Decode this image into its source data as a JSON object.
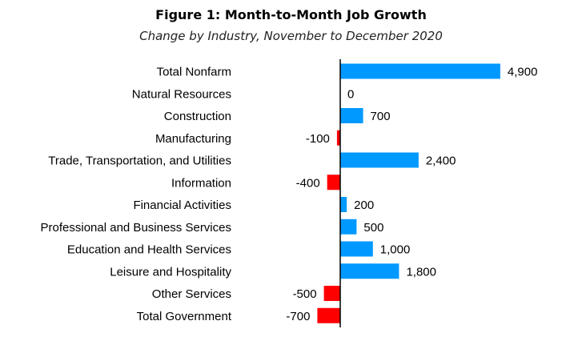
{
  "chart_data": {
    "type": "bar",
    "orientation": "horizontal",
    "title": "Figure 1: Month-to-Month Job Growth",
    "subtitle": "Change by Industry, November to December 2020",
    "categories": [
      "Total Nonfarm",
      "Natural Resources",
      "Construction",
      "Manufacturing",
      "Trade, Transportation, and Utilities",
      "Information",
      "Financial Activities",
      "Professional and Business Services",
      "Education and Health Services",
      "Leisure and Hospitality",
      "Other Services",
      "Total Government"
    ],
    "values": [
      4900,
      0,
      700,
      -100,
      2400,
      -400,
      200,
      500,
      1000,
      1800,
      -500,
      -700
    ],
    "value_labels": [
      "4,900",
      "0",
      "700",
      "-100",
      "2,400",
      "-400",
      "200",
      "500",
      "1,000",
      "1,800",
      "-500",
      "-700"
    ],
    "colors": {
      "positive": "#0099ff",
      "negative": "#ff0000",
      "axis": "#000000"
    },
    "grid": false,
    "legend": "none"
  }
}
